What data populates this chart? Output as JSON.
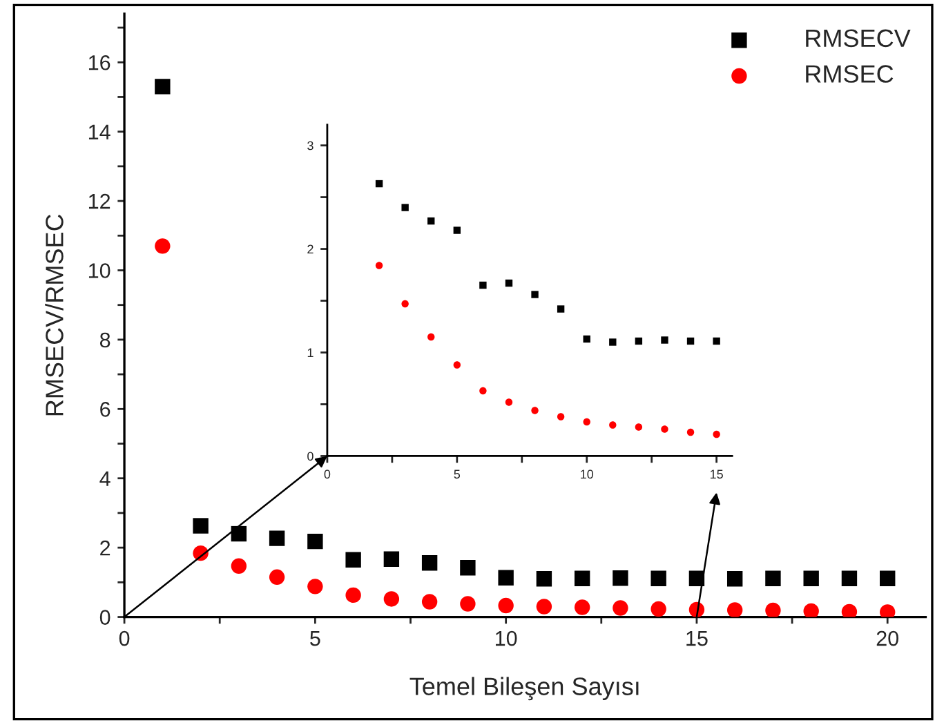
{
  "chart_data": [
    {
      "type": "scatter",
      "xlabel": "Temel Bileşen Sayısı",
      "ylabel": "RMSECV/RMSEC",
      "x": [
        1,
        2,
        3,
        4,
        5,
        6,
        7,
        8,
        9,
        10,
        11,
        12,
        13,
        14,
        15,
        16,
        17,
        18,
        19,
        20
      ],
      "series": [
        {
          "name": "RMSECV",
          "color": "#000000",
          "marker": "square",
          "values": [
            15.3,
            2.63,
            2.4,
            2.27,
            2.18,
            1.65,
            1.67,
            1.56,
            1.42,
            1.13,
            1.1,
            1.11,
            1.12,
            1.11,
            1.11,
            1.1,
            1.11,
            1.11,
            1.11,
            1.11
          ]
        },
        {
          "name": "RMSEC",
          "color": "#ff0000",
          "marker": "circle",
          "values": [
            10.7,
            1.84,
            1.47,
            1.15,
            0.88,
            0.63,
            0.52,
            0.44,
            0.38,
            0.33,
            0.3,
            0.28,
            0.26,
            0.23,
            0.21,
            0.2,
            0.19,
            0.17,
            0.15,
            0.14
          ]
        }
      ],
      "xlim": [
        0,
        21
      ],
      "ylim": [
        0,
        17.4
      ],
      "xticks": [
        0,
        {
          "value": 2.5,
          "label": null
        },
        5,
        {
          "value": 7.5,
          "label": null
        },
        10,
        {
          "value": 12.5,
          "label": null
        },
        15,
        {
          "value": 17.5,
          "label": null
        },
        20
      ],
      "yticks": [
        0,
        {
          "value": 1,
          "label": null
        },
        2,
        {
          "value": 3,
          "label": null
        },
        4,
        {
          "value": 5,
          "label": null
        },
        6,
        {
          "value": 7,
          "label": null
        },
        8,
        {
          "value": 9,
          "label": null
        },
        10,
        {
          "value": 11,
          "label": null
        },
        12,
        {
          "value": 13,
          "label": null
        },
        14,
        {
          "value": 15,
          "label": null
        },
        16,
        {
          "value": 17,
          "label": null
        }
      ],
      "legend": "top right",
      "grid": false
    },
    {
      "type": "scatter",
      "x": [
        2,
        3,
        4,
        5,
        6,
        7,
        8,
        9,
        10,
        11,
        12,
        13,
        14,
        15
      ],
      "series": [
        {
          "color": "#000000",
          "marker": "square",
          "values": [
            2.63,
            2.4,
            2.27,
            2.18,
            1.65,
            1.67,
            1.56,
            1.42,
            1.13,
            1.1,
            1.11,
            1.12,
            1.11,
            1.11
          ]
        },
        {
          "color": "#ff0000",
          "marker": "circle",
          "values": [
            1.84,
            1.47,
            1.15,
            0.88,
            0.63,
            0.52,
            0.44,
            0.38,
            0.33,
            0.3,
            0.28,
            0.26,
            0.23,
            0.21
          ]
        }
      ],
      "xlim": [
        0,
        15.6
      ],
      "ylim": [
        0,
        3.2
      ],
      "xticks": [
        0,
        {
          "value": 2.5,
          "label": null
        },
        5,
        {
          "value": 7.5,
          "label": null
        },
        10,
        {
          "value": 12.5,
          "label": null
        },
        15
      ],
      "yticks": [
        0,
        {
          "value": 0.5,
          "label": null
        },
        1,
        {
          "value": 1.5,
          "label": null
        },
        2,
        {
          "value": 2.5,
          "label": null
        },
        3
      ],
      "grid": false
    }
  ]
}
